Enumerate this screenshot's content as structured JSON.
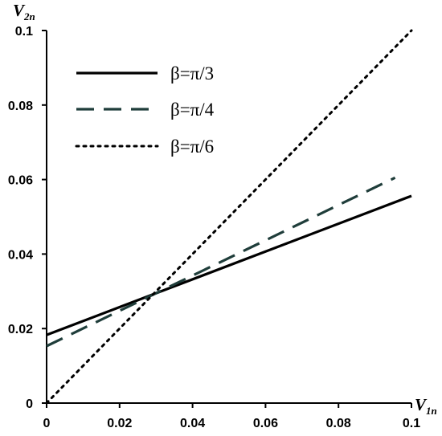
{
  "chart_data": {
    "type": "line",
    "x_axis": {
      "label": "V",
      "label_sub": "1n",
      "range": [
        0,
        0.1
      ],
      "ticks": [
        {
          "value": 0,
          "label": "0"
        },
        {
          "value": 0.02,
          "label": "0.02"
        },
        {
          "value": 0.04,
          "label": "0.04"
        },
        {
          "value": 0.06,
          "label": "0.06"
        },
        {
          "value": 0.08,
          "label": "0.08"
        },
        {
          "value": 0.1,
          "label": "0.1"
        }
      ]
    },
    "y_axis": {
      "label": "V",
      "label_sub": "2n",
      "range": [
        0,
        0.1
      ],
      "ticks": [
        {
          "value": 0,
          "label": "0"
        },
        {
          "value": 0.02,
          "label": "0.02"
        },
        {
          "value": 0.04,
          "label": "0.04"
        },
        {
          "value": 0.06,
          "label": "0.06"
        },
        {
          "value": 0.08,
          "label": "0.08"
        },
        {
          "value": 0.1,
          "label": "0.1"
        }
      ]
    },
    "grid": false,
    "legend_position": "top-left",
    "series": [
      {
        "name": "β=π/3",
        "style": "solid",
        "color": "#000000",
        "x": [
          0,
          0.1
        ],
        "y": [
          0.0183,
          0.0556
        ]
      },
      {
        "name": "β=π/4",
        "style": "dashed",
        "color": "#1f3d3a",
        "x": [
          0,
          0.0955
        ],
        "y": [
          0.0153,
          0.0605
        ]
      },
      {
        "name": "β=π/6",
        "style": "dotted",
        "color": "#000000",
        "x": [
          0,
          0.1
        ],
        "y": [
          0,
          0.1
        ]
      }
    ]
  }
}
